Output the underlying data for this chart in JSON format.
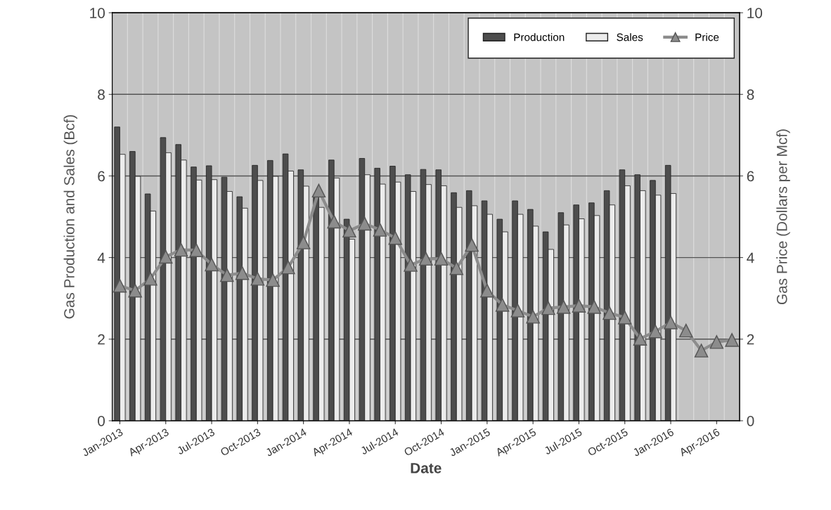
{
  "chart_data": {
    "type": "bar",
    "xlabel": "Date",
    "ylabel": "Gas Production and Sales (Bcf)",
    "y2label": "Gas Price (Dollars per Mcf)",
    "categories": [
      "Jan-2013",
      null,
      null,
      "Apr-2013",
      null,
      null,
      "Jul-2013",
      null,
      null,
      "Oct-2013",
      null,
      null,
      "Jan-2014",
      null,
      null,
      "Apr-2014",
      null,
      null,
      "Jul-2014",
      null,
      null,
      "Oct-2014",
      null,
      null,
      "Jan-2015",
      null,
      null,
      "Apr-2015",
      null,
      null,
      "Jul-2015",
      null,
      null,
      "Oct-2015",
      null,
      null,
      "Jan-2016",
      null,
      null,
      "Apr-2016",
      null
    ],
    "series": [
      {
        "name": "Production",
        "color": "#4d4d4d",
        "values": [
          7.2,
          6.6,
          5.56,
          6.94,
          6.77,
          6.22,
          6.25,
          5.97,
          5.49,
          6.26,
          6.38,
          6.54,
          6.15,
          5.5,
          6.39,
          4.94,
          6.43,
          6.19,
          6.24,
          6.03,
          6.16,
          6.15,
          5.59,
          5.64,
          5.39,
          4.94,
          5.39,
          5.18,
          4.63,
          5.1,
          5.29,
          5.34,
          5.64,
          6.15,
          6.03,
          5.89,
          6.26,
          null,
          null,
          null,
          null
        ]
      },
      {
        "name": "Sales",
        "color": "#ececec",
        "values": [
          6.53,
          5.99,
          5.14,
          6.57,
          6.39,
          5.9,
          5.91,
          5.62,
          5.21,
          5.89,
          5.99,
          6.12,
          5.75,
          5.23,
          5.95,
          4.45,
          6.03,
          5.8,
          5.85,
          5.62,
          5.79,
          5.76,
          5.23,
          5.27,
          5.06,
          4.63,
          5.06,
          4.77,
          4.2,
          4.8,
          4.95,
          5.03,
          5.29,
          5.76,
          5.64,
          5.53,
          5.57,
          null,
          null,
          null,
          null
        ]
      },
      {
        "name": "Price",
        "type": "line",
        "axis": "y2",
        "color": "#8c8c8c",
        "marker": "triangle",
        "values": [
          3.31,
          3.19,
          3.48,
          4.02,
          4.19,
          4.18,
          3.83,
          3.57,
          3.62,
          3.48,
          3.45,
          3.76,
          4.37,
          5.64,
          4.88,
          4.66,
          4.83,
          4.68,
          4.48,
          3.82,
          3.97,
          3.97,
          3.74,
          4.31,
          3.19,
          2.84,
          2.7,
          2.55,
          2.76,
          2.79,
          2.82,
          2.79,
          2.64,
          2.53,
          2.01,
          2.19,
          2.41,
          2.21,
          1.72,
          1.93,
          1.98
        ]
      }
    ],
    "ylim": [
      0,
      10
    ],
    "yticks": [
      0,
      2,
      4,
      6,
      8,
      10
    ],
    "y2lim": [
      0,
      10
    ],
    "y2ticks": [
      0,
      2,
      4,
      6,
      8,
      10
    ],
    "grid": true,
    "legend": "top right"
  }
}
